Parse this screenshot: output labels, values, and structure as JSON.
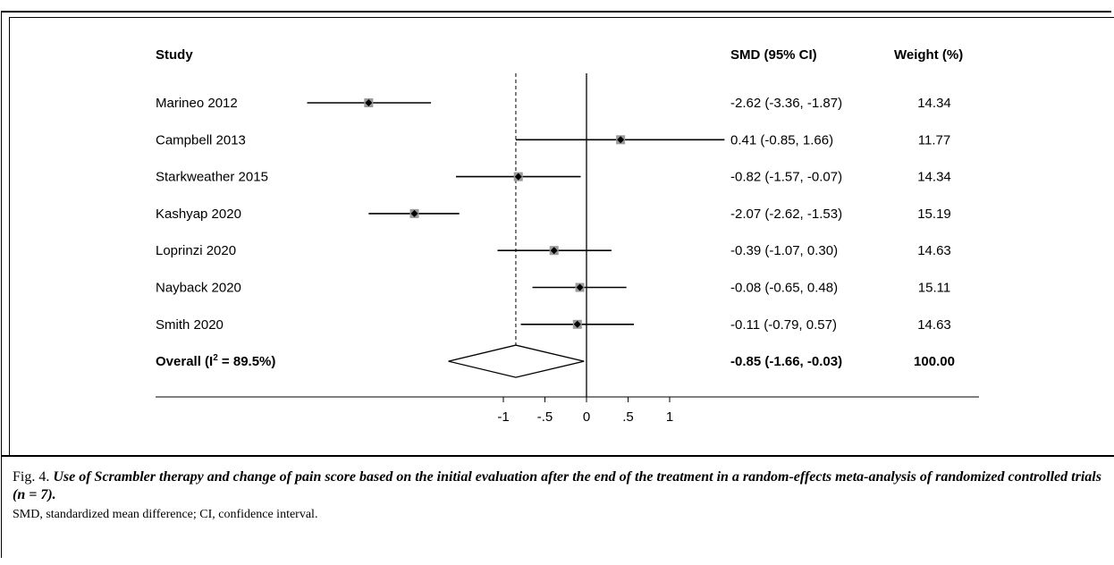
{
  "chart_data": {
    "type": "forest",
    "headers": {
      "study": "Study",
      "estimate": "SMD (95% CI)",
      "weight": "Weight (%)"
    },
    "studies": [
      {
        "name": "Marineo 2012",
        "smd": -2.62,
        "lo": -3.36,
        "hi": -1.87,
        "ci_text": "-2.62 (-3.36, -1.87)",
        "weight": "14.34"
      },
      {
        "name": "Campbell 2013",
        "smd": 0.41,
        "lo": -0.85,
        "hi": 1.66,
        "ci_text": "0.41 (-0.85, 1.66)",
        "weight": "11.77"
      },
      {
        "name": "Starkweather 2015",
        "smd": -0.82,
        "lo": -1.57,
        "hi": -0.07,
        "ci_text": "-0.82 (-1.57, -0.07)",
        "weight": "14.34"
      },
      {
        "name": "Kashyap 2020",
        "smd": -2.07,
        "lo": -2.62,
        "hi": -1.53,
        "ci_text": "-2.07 (-2.62, -1.53)",
        "weight": "15.19"
      },
      {
        "name": "Loprinzi 2020",
        "smd": -0.39,
        "lo": -1.07,
        "hi": 0.3,
        "ci_text": "-0.39 (-1.07, 0.30)",
        "weight": "14.63"
      },
      {
        "name": "Nayback 2020",
        "smd": -0.08,
        "lo": -0.65,
        "hi": 0.48,
        "ci_text": "-0.08 (-0.65, 0.48)",
        "weight": "15.11"
      },
      {
        "name": "Smith 2020",
        "smd": -0.11,
        "lo": -0.79,
        "hi": 0.57,
        "ci_text": "-0.11 (-0.79, 0.57)",
        "weight": "14.63"
      }
    ],
    "overall": {
      "label_main": "Overall (I",
      "label_sup": "2",
      "label_end": " = 89.5%)",
      "smd": -0.85,
      "lo": -1.66,
      "hi": -0.03,
      "ci_text": "-0.85 (-1.66, -0.03)",
      "weight": "100.00"
    },
    "x_ticks": [
      {
        "value": -1,
        "label": "-1"
      },
      {
        "value": -0.5,
        "label": "-.5"
      },
      {
        "value": 0,
        "label": "0"
      },
      {
        "value": 0.5,
        "label": ".5"
      },
      {
        "value": 1,
        "label": "1"
      }
    ],
    "null_line": 0,
    "pooled_reference_line": -0.85
  },
  "caption": {
    "fig_label": "Fig. 4.",
    "title": "Use of Scrambler therapy and change of pain score based on the initial evaluation after the end of the treatment in a random-effects meta-analysis of randomized controlled trials (n = 7).",
    "note": "SMD, standardized mean difference; CI, confidence interval."
  }
}
